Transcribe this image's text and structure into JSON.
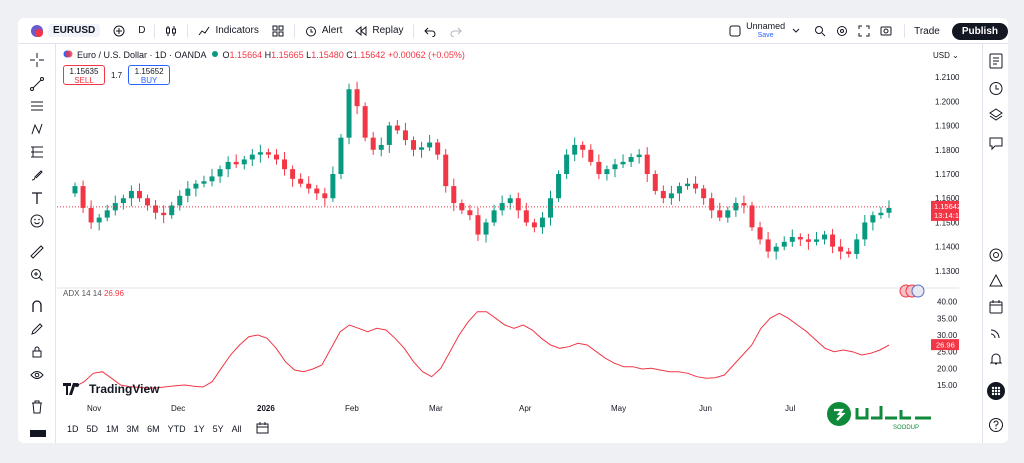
{
  "topbar": {
    "symbol": "EURUSD",
    "interval": "D",
    "indicators_label": "Indicators",
    "alert_label": "Alert",
    "replay_label": "Replay",
    "layout_name": "Unnamed",
    "save_label": "Save",
    "trade_label": "Trade",
    "publish_label": "Publish"
  },
  "legend": {
    "title": "Euro / U.S. Dollar · 1D · OANDA",
    "o_key": "O",
    "o_val": "1.15664",
    "h_key": "H",
    "h_val": "1.15665",
    "l_key": "L",
    "l_val": "1.15480",
    "c_key": "C",
    "c_val": "1.15642",
    "change": "+0.00062 (+0.05%)"
  },
  "trade": {
    "sell_price": "1.15635",
    "sell_label": "SELL",
    "spread": "1.7",
    "buy_price": "1.15652",
    "buy_label": "BUY"
  },
  "indicator": {
    "name": "ADX 14 14",
    "value": "26.96"
  },
  "price_axis": {
    "currency": "USD",
    "labels": [
      "1.21000",
      "1.20000",
      "1.19000",
      "1.18000",
      "1.17000",
      "1.16000",
      "1.15000",
      "1.14000",
      "1.13000"
    ],
    "current_price": "1.15642",
    "countdown": "13:14:11"
  },
  "adx_axis": {
    "labels": [
      "40.00",
      "35.00",
      "30.00",
      "25.00",
      "20.00",
      "15.00"
    ],
    "current": "26.96"
  },
  "time_axis": [
    "Nov",
    "Dec",
    "2026",
    "Feb",
    "Mar",
    "Apr",
    "May",
    "Jun",
    "Jul"
  ],
  "ranges": [
    "1D",
    "5D",
    "1M",
    "3M",
    "6M",
    "YTD",
    "1Y",
    "5Y",
    "All"
  ],
  "branding": {
    "tradingview": "TradingView",
    "watermark": "SOODUP"
  },
  "colors": {
    "up": "#089981",
    "down": "#f23645",
    "accent": "#2962ff",
    "adx_line": "#f23645"
  },
  "chart_data": [
    {
      "type": "candlestick",
      "title": "Euro / U.S. Dollar · 1D · OANDA",
      "ylim": [
        1.125,
        1.215
      ],
      "x_categories": [
        "Nov",
        "Dec",
        "2026",
        "Feb",
        "Mar",
        "Apr",
        "May",
        "Jun",
        "Jul"
      ],
      "close_path": [
        1.165,
        1.156,
        1.15,
        1.152,
        1.155,
        1.158,
        1.16,
        1.163,
        1.16,
        1.157,
        1.154,
        1.153,
        1.157,
        1.161,
        1.164,
        1.166,
        1.167,
        1.169,
        1.172,
        1.175,
        1.174,
        1.176,
        1.178,
        1.179,
        1.178,
        1.176,
        1.172,
        1.168,
        1.166,
        1.164,
        1.162,
        1.16,
        1.17,
        1.185,
        1.205,
        1.198,
        1.185,
        1.18,
        1.182,
        1.19,
        1.188,
        1.184,
        1.18,
        1.181,
        1.183,
        1.178,
        1.165,
        1.158,
        1.155,
        1.153,
        1.145,
        1.15,
        1.155,
        1.158,
        1.16,
        1.155,
        1.15,
        1.148,
        1.152,
        1.16,
        1.17,
        1.178,
        1.182,
        1.18,
        1.175,
        1.17,
        1.172,
        1.174,
        1.175,
        1.177,
        1.178,
        1.17,
        1.163,
        1.16,
        1.162,
        1.165,
        1.166,
        1.164,
        1.16,
        1.155,
        1.152,
        1.155,
        1.158,
        1.157,
        1.148,
        1.143,
        1.138,
        1.14,
        1.142,
        1.144,
        1.143,
        1.142,
        1.143,
        1.145,
        1.14,
        1.138,
        1.137,
        1.143,
        1.15,
        1.153,
        1.154,
        1.156
      ]
    },
    {
      "type": "line",
      "series": [
        {
          "name": "ADX 14 14",
          "values": [
            14.5,
            16,
            18.5,
            19,
            17,
            15,
            14.5,
            14.3,
            14,
            14.2,
            14.5,
            14.8,
            15,
            14.6,
            14.4,
            16,
            20,
            24,
            27,
            29.5,
            30,
            29,
            26,
            22,
            19.5,
            19,
            19.8,
            21,
            26,
            31,
            33,
            32,
            31,
            32,
            31.5,
            29,
            26,
            22,
            19,
            17.5,
            20,
            25,
            30,
            34,
            37,
            37,
            35,
            33,
            32,
            33,
            31.5,
            29,
            27,
            26,
            26.5,
            27.5,
            27,
            25,
            23,
            21.5,
            20.5,
            20.5,
            19.8,
            20,
            19.5,
            19,
            19,
            18.5,
            17.5,
            17,
            17.2,
            18,
            21,
            24,
            27,
            32,
            35,
            36.5,
            35,
            33,
            31,
            28.5,
            26,
            25,
            25.5,
            25,
            24,
            24.5,
            25.5,
            26.96
          ]
        }
      ],
      "ylim": [
        12,
        42
      ]
    }
  ]
}
